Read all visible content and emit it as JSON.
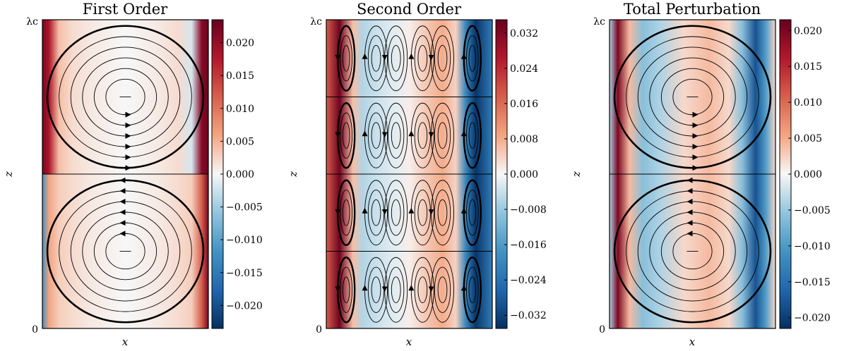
{
  "chart_data": [
    {
      "type": "heatmap",
      "title": "First Order",
      "xlabel": "x",
      "ylabel": "z",
      "y_ticks": [
        "0",
        "λc"
      ],
      "colormap": "RdBu_r",
      "colorbar_range": [
        -0.0235,
        0.0235
      ],
      "colorbar_ticks": [
        "0.020",
        "0.015",
        "0.010",
        "0.005",
        "0.000",
        "−0.005",
        "−0.010",
        "−0.015",
        "−0.020"
      ],
      "colorbar_tick_values": [
        0.02,
        0.015,
        0.01,
        0.005,
        0.0,
        -0.005,
        -0.01,
        -0.015,
        -0.02
      ],
      "field_profile": {
        "x": [
          0.0,
          0.04,
          0.1,
          0.18,
          0.3,
          0.5,
          0.7,
          0.82,
          0.9,
          0.96,
          1.0
        ],
        "value_top_half": [
          0.022,
          0.018,
          0.004,
          0.002,
          0.001,
          0.0,
          0.001,
          0.002,
          -0.002,
          0.021,
          0.023
        ],
        "value_bottom_half": [
          -0.012,
          0.006,
          0.003,
          0.002,
          0.001,
          0.0,
          0.001,
          0.002,
          0.003,
          0.012,
          0.022
        ]
      },
      "streamline_cells": 2
    },
    {
      "type": "heatmap",
      "title": "Second Order",
      "xlabel": "x",
      "ylabel": "z",
      "y_ticks": [
        "0",
        "λc"
      ],
      "colormap": "RdBu_r",
      "colorbar_range": [
        -0.035,
        0.035
      ],
      "colorbar_ticks": [
        "0.032",
        "0.024",
        "0.016",
        "0.008",
        "0.000",
        "−0.008",
        "−0.016",
        "−0.024",
        "−0.032"
      ],
      "colorbar_tick_values": [
        0.032,
        0.024,
        0.016,
        0.008,
        0.0,
        -0.008,
        -0.016,
        -0.024,
        -0.032
      ],
      "field_profile": {
        "x": [
          0.0,
          0.08,
          0.16,
          0.22,
          0.3,
          0.4,
          0.5,
          0.6,
          0.7,
          0.78,
          0.84,
          0.9,
          1.0
        ],
        "value": [
          0.018,
          0.034,
          0.006,
          -0.006,
          -0.004,
          -0.002,
          0.001,
          0.005,
          0.008,
          0.004,
          -0.02,
          -0.034,
          -0.022
        ]
      },
      "streamline_cells": 4
    },
    {
      "type": "heatmap",
      "title": "Total Perturbation",
      "xlabel": "x",
      "ylabel": "z",
      "y_ticks": [
        "0",
        "λc"
      ],
      "colormap": "RdBu_r",
      "colorbar_range": [
        -0.0215,
        0.0215
      ],
      "colorbar_ticks": [
        "0.020",
        "0.015",
        "0.010",
        "0.005",
        "0.000",
        "−0.005",
        "−0.010",
        "−0.015",
        "−0.020"
      ],
      "colorbar_tick_values": [
        0.02,
        0.015,
        0.01,
        0.005,
        0.0,
        -0.005,
        -0.01,
        -0.015,
        -0.02
      ],
      "field_profile": {
        "x": [
          0.0,
          0.05,
          0.12,
          0.2,
          0.3,
          0.45,
          0.6,
          0.72,
          0.8,
          0.88,
          0.94,
          1.0
        ],
        "value": [
          -0.004,
          0.02,
          0.004,
          -0.006,
          -0.004,
          0.002,
          0.004,
          0.002,
          -0.006,
          -0.018,
          -0.01,
          0.002
        ]
      },
      "streamline_cells": 2
    }
  ]
}
